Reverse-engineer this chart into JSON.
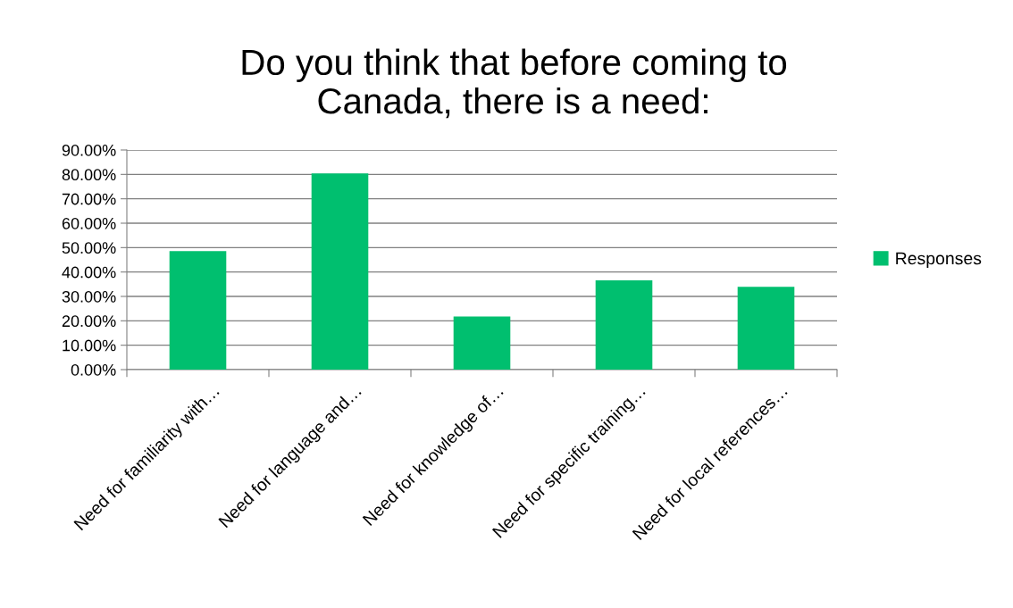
{
  "chart_data": {
    "type": "bar",
    "title": "Do you think that before coming to\nCanada, there is a need:",
    "categories": [
      "Need for familiarity with…",
      "Need for language and…",
      "Need for knowledge of…",
      "Need for specific training…",
      "Need for local references…"
    ],
    "series": [
      {
        "name": "Responses",
        "color": "#00bf6f",
        "values": [
          48.6,
          80.4,
          21.8,
          36.6,
          33.9
        ]
      }
    ],
    "ylim": [
      0,
      90
    ],
    "yticks": [
      {
        "value": 0,
        "label": "0.00%"
      },
      {
        "value": 10,
        "label": "10.00%"
      },
      {
        "value": 20,
        "label": "20.00%"
      },
      {
        "value": 30,
        "label": "30.00%"
      },
      {
        "value": 40,
        "label": "40.00%"
      },
      {
        "value": 50,
        "label": "50.00%"
      },
      {
        "value": 60,
        "label": "60.00%"
      },
      {
        "value": 70,
        "label": "70.00%"
      },
      {
        "value": 80,
        "label": "80.00%"
      },
      {
        "value": 90,
        "label": "90.00%"
      }
    ],
    "grid": "y",
    "legend": "right"
  }
}
